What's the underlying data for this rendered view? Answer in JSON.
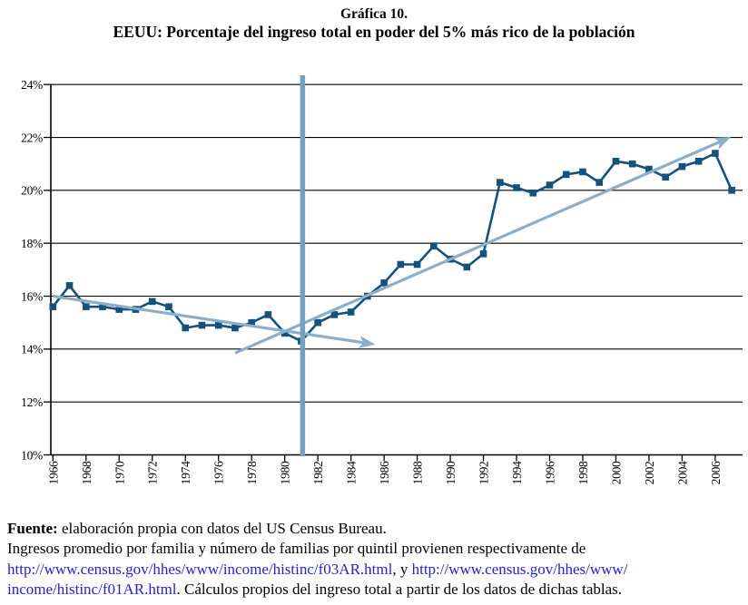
{
  "title": {
    "line1": "Gráfica 10.",
    "line2": "EEUU: Porcentaje del ingreso total en poder del 5% más rico de la población"
  },
  "colors": {
    "series": "#14527E",
    "trend": "#8CAEC9",
    "vertical_line": "#74A0BD",
    "grid": "#000000",
    "axis": "#000000",
    "link": "#2424CC",
    "text": "#000000"
  },
  "chart_data": {
    "type": "line",
    "title": "EEUU: Porcentaje del ingreso total en poder del 5% más rico de la población",
    "xlabel": "",
    "ylabel": "",
    "grid": "horizontal gridlines every 2%",
    "legend_position": "none",
    "ylim": [
      10,
      24
    ],
    "xlim": [
      1966,
      2008
    ],
    "y_tick_values": [
      10,
      12,
      14,
      16,
      18,
      20,
      22,
      24
    ],
    "y_tick_labels": [
      "10%",
      "12%",
      "14%",
      "16%",
      "18%",
      "20%",
      "22%",
      "24%"
    ],
    "x_tick_labels": [
      "1966",
      "1968",
      "1970",
      "1972",
      "1974",
      "1976",
      "1978",
      "1980",
      "1982",
      "1984",
      "1986",
      "1988",
      "1990",
      "1992",
      "1994",
      "1996",
      "1998",
      "2000",
      "2002",
      "2004",
      "2006"
    ],
    "x": [
      1966,
      1967,
      1968,
      1969,
      1970,
      1971,
      1972,
      1973,
      1974,
      1975,
      1976,
      1977,
      1978,
      1979,
      1980,
      1981,
      1982,
      1983,
      1984,
      1985,
      1986,
      1987,
      1988,
      1989,
      1990,
      1991,
      1992,
      1993,
      1994,
      1995,
      1996,
      1997,
      1998,
      1999,
      2000,
      2001,
      2002,
      2003,
      2004,
      2005,
      2006,
      2007
    ],
    "series": [
      {
        "name": "Porcentaje del ingreso total en poder del 5% más rico",
        "marker": "square",
        "values": [
          15.6,
          16.4,
          15.6,
          15.6,
          15.5,
          15.5,
          15.8,
          15.6,
          14.8,
          14.9,
          14.9,
          14.8,
          15.0,
          15.3,
          14.6,
          14.3,
          15.0,
          15.3,
          15.4,
          16.0,
          16.5,
          17.2,
          17.2,
          17.9,
          17.4,
          17.1,
          17.6,
          20.3,
          20.1,
          19.9,
          20.2,
          20.6,
          20.7,
          20.3,
          21.1,
          21.0,
          20.8,
          20.5,
          20.9,
          21.1,
          21.4,
          20.0
        ]
      }
    ],
    "annotations": {
      "vertical_reference_line": {
        "x_year": 1981.08,
        "y1_value": 24.35,
        "y2_value": 9.95
      },
      "trend_arrow_down": {
        "x1_year": 1966.0,
        "y1_value": 16.0,
        "x2_year": 1985.2,
        "y2_value": 14.2
      },
      "trend_arrow_up": {
        "x1_year": 1977.0,
        "y1_value": 13.85,
        "x2_year": 2006.7,
        "y2_value": 21.95
      }
    }
  },
  "footer": {
    "lines": [
      {
        "segments": [
          {
            "t": "Fuente:",
            "bold": true
          },
          {
            "t": " elaboración propia con datos del US Census Bureau."
          }
        ]
      },
      {
        "segments": [
          {
            "t": "Ingresos promedio por familia y número de familias por quintil provienen respectivamente de"
          }
        ]
      },
      {
        "segments": [
          {
            "t": "http://www.census.gov/hhes/www/income/histinc/f03AR.html",
            "link": true
          },
          {
            "t": ", y "
          },
          {
            "t": "http://www.census.gov/hhes/www/",
            "link": true
          }
        ]
      },
      {
        "segments": [
          {
            "t": "income/histinc/f01AR.html",
            "link": true
          },
          {
            "t": ". Cálculos propios del ingreso total a partir de los datos de dichas tablas."
          }
        ]
      }
    ]
  }
}
